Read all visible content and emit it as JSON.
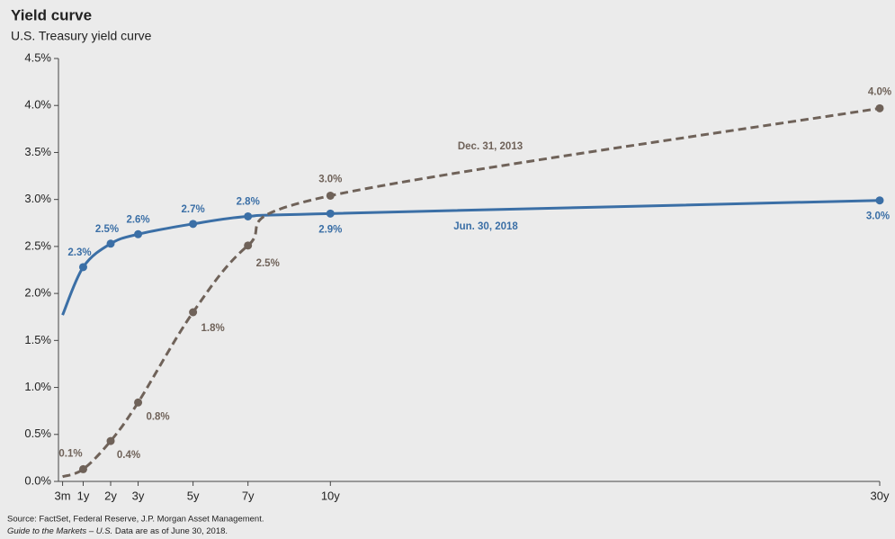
{
  "chart_data": {
    "type": "line",
    "title": "Yield curve",
    "subtitle": "U.S. Treasury yield curve",
    "source": "Source: FactSet, Federal Reserve, J.P. Morgan Asset Management.",
    "note_italic": "Guide to the Markets – U.S.",
    "note": "Data are as of June 30, 2018.",
    "x": [
      0.25,
      1,
      2,
      3,
      5,
      7,
      10,
      30
    ],
    "xlim": [
      0.1,
      30
    ],
    "xticks": [
      {
        "value": 0.25,
        "label": "3m"
      },
      {
        "value": 1,
        "label": "1y"
      },
      {
        "value": 2,
        "label": "2y"
      },
      {
        "value": 3,
        "label": "3y"
      },
      {
        "value": 5,
        "label": "5y"
      },
      {
        "value": 7,
        "label": "7y"
      },
      {
        "value": 10,
        "label": "10y"
      },
      {
        "value": 30,
        "label": "30y"
      }
    ],
    "ylim": [
      0,
      4.5
    ],
    "yticks": [
      {
        "value": 0,
        "label": "0.0%"
      },
      {
        "value": 0.5,
        "label": "0.5%"
      },
      {
        "value": 1,
        "label": "1.0%"
      },
      {
        "value": 1.5,
        "label": "1.5%"
      },
      {
        "value": 2,
        "label": "2.0%"
      },
      {
        "value": 2.5,
        "label": "2.5%"
      },
      {
        "value": 3,
        "label": "3.0%"
      },
      {
        "value": 3.5,
        "label": "3.5%"
      },
      {
        "value": 4,
        "label": "4.0%"
      },
      {
        "value": 4.5,
        "label": "4.5%"
      }
    ],
    "grid": false,
    "series": [
      {
        "name": "Jun. 30, 2018",
        "color": "#3b6fa6",
        "dashed": false,
        "values": [
          1.77,
          2.28,
          2.53,
          2.63,
          2.74,
          2.82,
          2.85,
          2.99
        ],
        "value_labels": [
          null,
          "2.3%",
          "2.5%",
          "2.6%",
          "2.7%",
          "2.8%",
          "2.9%",
          "3.0%"
        ]
      },
      {
        "name": "Dec. 31, 2013",
        "color": "#6f6259",
        "dashed": true,
        "values": [
          0.05,
          0.13,
          0.43,
          0.84,
          1.8,
          2.51,
          3.04,
          3.97
        ],
        "value_labels": [
          null,
          "0.1%",
          "0.4%",
          "0.8%",
          "1.8%",
          "2.5%",
          "3.0%",
          "4.0%"
        ]
      }
    ]
  }
}
